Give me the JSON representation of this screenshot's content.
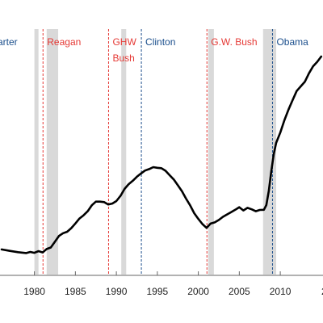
{
  "chart_data": {
    "type": "line",
    "title": "",
    "xlabel": "",
    "ylabel": "",
    "grid": false,
    "legend": "none",
    "xlim": [
      1976,
      2016
    ],
    "ylim": [
      0,
      100
    ],
    "x_ticks": [
      1980,
      1985,
      1990,
      1995,
      2000,
      2005,
      2010
    ],
    "x_tick_labels": [
      "1980",
      "1985",
      "1990",
      "1995",
      "2000",
      "2005",
      "2010"
    ],
    "clipped_last_tick_label": "2",
    "line_color": "#000000",
    "recessions": [
      {
        "start": 1980.0,
        "end": 1980.5
      },
      {
        "start": 1981.5,
        "end": 1982.9
      },
      {
        "start": 1990.6,
        "end": 1991.2
      },
      {
        "start": 2001.2,
        "end": 2001.9
      },
      {
        "start": 2007.9,
        "end": 2009.5
      }
    ],
    "recession_color": "#d9d9d9",
    "presidencies": [
      {
        "name": "arter",
        "start": 1977.0,
        "party_color": "#1a4e8c"
      },
      {
        "name": "Reagan",
        "start": 1981.05,
        "party_color": "#e53935"
      },
      {
        "name": "GHW Bush",
        "start": 1989.05,
        "party_color": "#e53935"
      },
      {
        "name": "Clinton",
        "start": 1993.05,
        "party_color": "#1a4e8c"
      },
      {
        "name": "G.W. Bush",
        "start": 2001.05,
        "party_color": "#e53935"
      },
      {
        "name": "Obama",
        "start": 2009.05,
        "party_color": "#1a4e8c"
      }
    ],
    "series": [
      {
        "x": [
          1976.0,
          1977.0,
          1978.0,
          1979.0,
          1979.5,
          1980.0,
          1980.5,
          1981.0,
          1981.5,
          1982.0,
          1982.5,
          1983.0,
          1983.5,
          1984.0,
          1984.5,
          1985.0,
          1985.5,
          1986.0,
          1986.5,
          1987.0,
          1987.5,
          1988.0,
          1988.5,
          1989.0,
          1989.5,
          1990.0,
          1990.5,
          1991.0,
          1991.5,
          1992.0,
          1992.5,
          1993.0,
          1993.5,
          1994.0,
          1994.5,
          1995.0,
          1995.5,
          1996.0,
          1996.5,
          1997.0,
          1997.5,
          1998.0,
          1998.5,
          1999.0,
          1999.5,
          2000.0,
          2000.5,
          2001.0,
          2001.5,
          2002.0,
          2002.5,
          2003.0,
          2003.5,
          2004.0,
          2004.5,
          2005.0,
          2005.5,
          2006.0,
          2006.5,
          2007.0,
          2007.5,
          2008.0,
          2008.3,
          2008.6,
          2008.9,
          2009.2,
          2009.5,
          2010.0,
          2010.5,
          2011.0,
          2011.5,
          2012.0,
          2012.5,
          2013.0,
          2013.5,
          2014.0,
          2014.5,
          2015.0
        ],
        "y": [
          8.0,
          7.3,
          6.7,
          6.3,
          6.8,
          6.4,
          7.2,
          6.6,
          8.2,
          8.9,
          11.6,
          14.3,
          15.6,
          16.3,
          18.0,
          20.2,
          22.5,
          24.0,
          25.9,
          28.7,
          30.4,
          30.4,
          30.2,
          29.1,
          29.5,
          30.7,
          33.1,
          36.4,
          38.6,
          40.2,
          42.1,
          43.6,
          45.0,
          45.7,
          46.6,
          46.3,
          46.1,
          44.9,
          42.8,
          40.8,
          38.1,
          35.3,
          31.8,
          28.7,
          25.0,
          22.3,
          19.9,
          18.1,
          20.1,
          20.7,
          21.8,
          23.3,
          24.4,
          25.5,
          26.6,
          27.8,
          26.3,
          27.5,
          26.8,
          25.9,
          26.5,
          26.6,
          28.8,
          35.5,
          44.5,
          52.7,
          58.0,
          62.8,
          68.6,
          73.6,
          78.0,
          82.3,
          84.5,
          86.7,
          90.6,
          93.9,
          96.0,
          98.5
        ]
      }
    ]
  }
}
